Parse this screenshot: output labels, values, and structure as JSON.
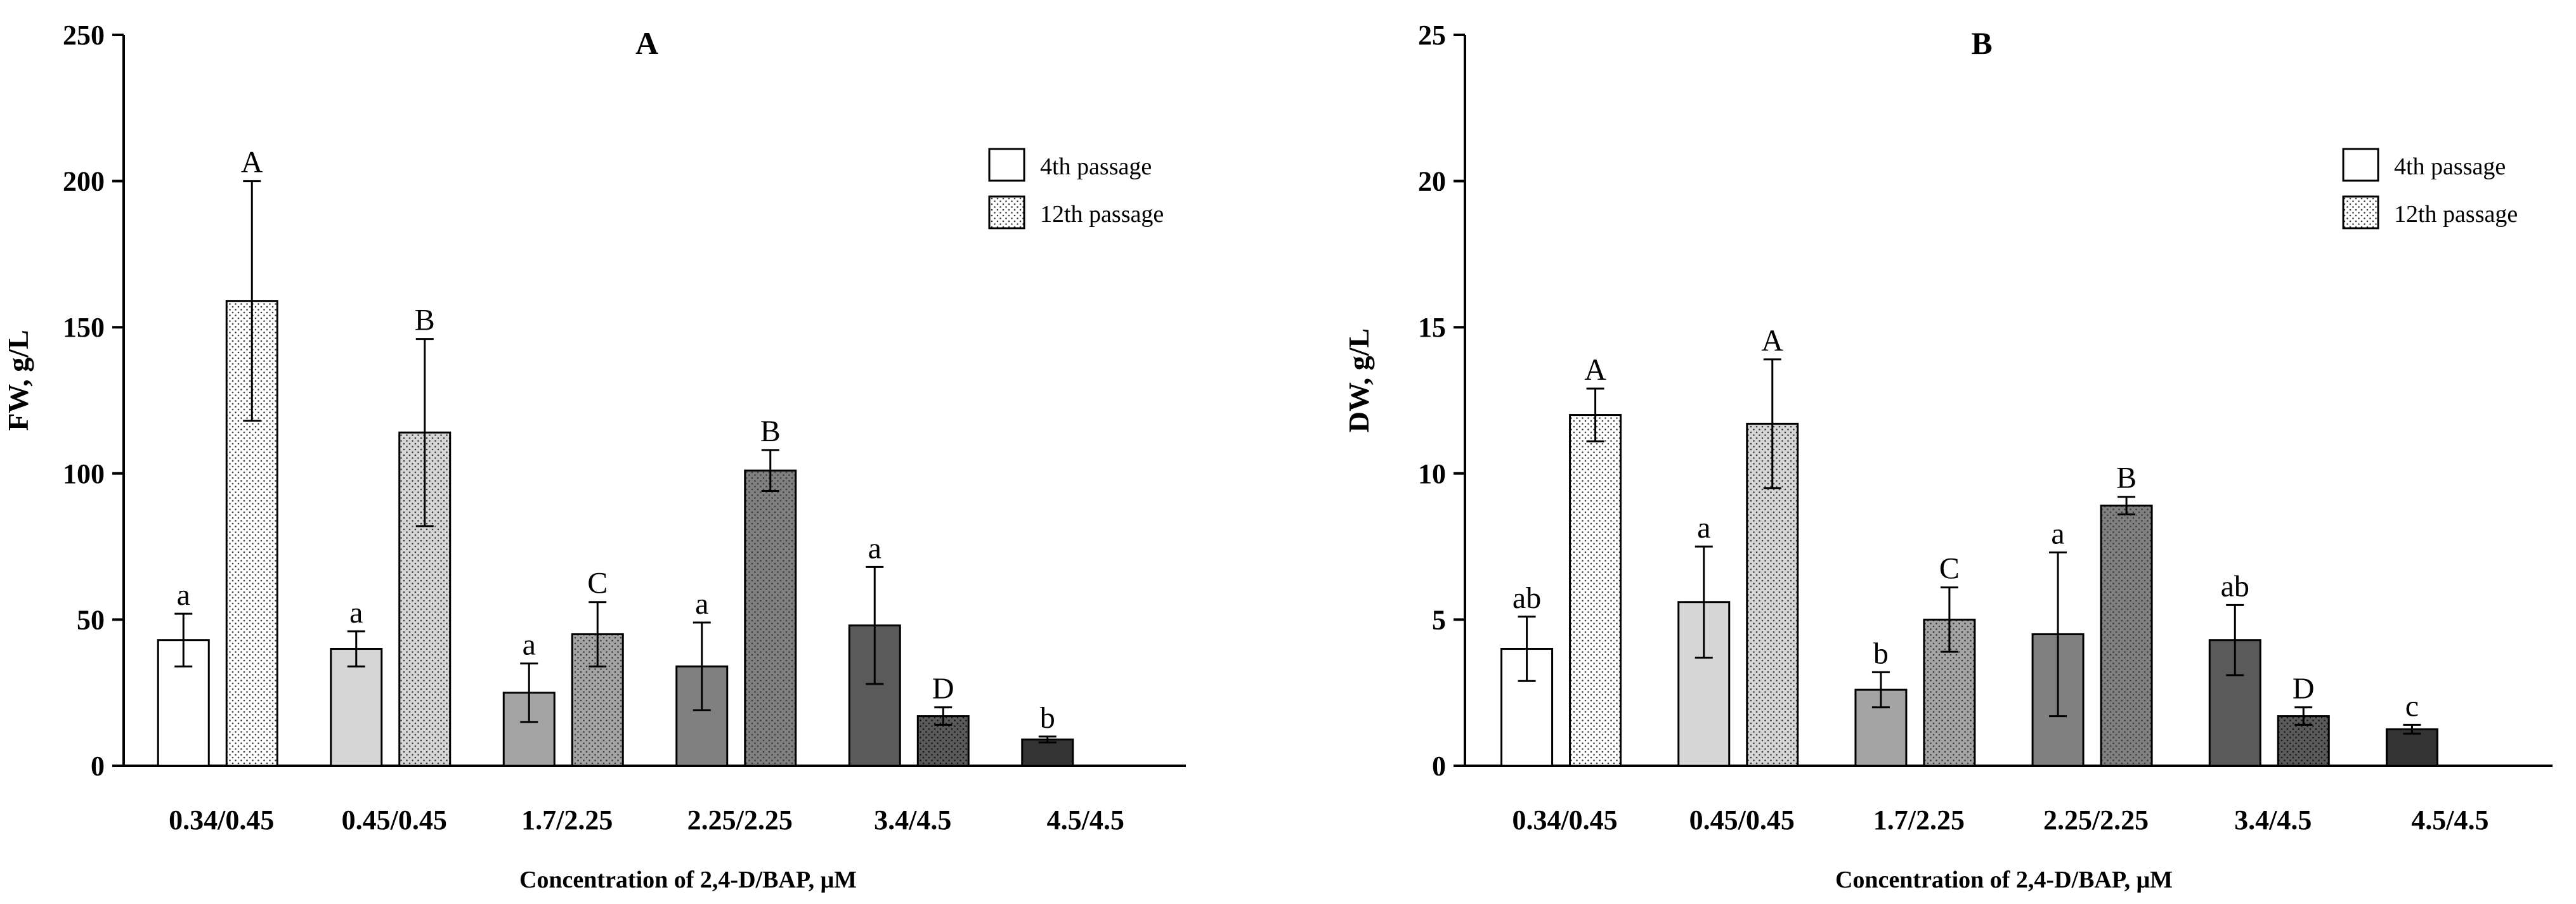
{
  "chart_data": [
    {
      "type": "bar",
      "panel": "A",
      "title": "A",
      "xlabel": "Concentration of 2,4-D/BAP, μM",
      "ylabel": "FW, g/L",
      "ylim": [
        0,
        250
      ],
      "yticks": [
        "0",
        "50",
        "100",
        "150",
        "200",
        "250"
      ],
      "categories": [
        "0.34/0.45",
        "0.45/0.45",
        "1.7/2.25",
        "2.25/2.25",
        "3.4/4.5",
        "4.5/4.5"
      ],
      "legend_position": "top-right",
      "series": [
        {
          "name": "4th passage",
          "pattern": "solid",
          "values": [
            43,
            40,
            25,
            34,
            48,
            9
          ],
          "errors": [
            9,
            6,
            10,
            15,
            20,
            1
          ],
          "letters": [
            "a",
            "a",
            "a",
            "a",
            "a",
            "b"
          ],
          "colors": [
            "#ffffff",
            "#d6d6d6",
            "#a4a4a4",
            "#808080",
            "#5a5a5a",
            "#333333"
          ]
        },
        {
          "name": "12th passage",
          "pattern": "dotted",
          "values": [
            159,
            114,
            45,
            101,
            17,
            null
          ],
          "errors": [
            41,
            32,
            11,
            7,
            3,
            null
          ],
          "letters": [
            "A",
            "B",
            "C",
            "B",
            "D",
            ""
          ],
          "colors": [
            "#ffffff",
            "#d6d6d6",
            "#a4a4a4",
            "#808080",
            "#5a5a5a",
            "#333333"
          ]
        }
      ]
    },
    {
      "type": "bar",
      "panel": "B",
      "title": "B",
      "xlabel": "Concentration of 2,4-D/BAP, μM",
      "ylabel": "DW, g/L",
      "ylim": [
        0,
        25
      ],
      "yticks": [
        "0",
        "5",
        "10",
        "15",
        "20",
        "25"
      ],
      "categories": [
        "0.34/0.45",
        "0.45/0.45",
        "1.7/2.25",
        "2.25/2.25",
        "3.4/4.5",
        "4.5/4.5"
      ],
      "legend_position": "top-right",
      "series": [
        {
          "name": "4th passage",
          "pattern": "solid",
          "values": [
            4.0,
            5.6,
            2.6,
            4.5,
            4.3,
            1.25
          ],
          "errors": [
            1.1,
            1.9,
            0.6,
            2.8,
            1.2,
            0.15
          ],
          "letters": [
            "ab",
            "a",
            "b",
            "a",
            "ab",
            "c"
          ],
          "colors": [
            "#ffffff",
            "#d6d6d6",
            "#a4a4a4",
            "#808080",
            "#5a5a5a",
            "#333333"
          ]
        },
        {
          "name": "12th passage",
          "pattern": "dotted",
          "values": [
            12.0,
            11.7,
            5.0,
            8.9,
            1.7,
            null
          ],
          "errors": [
            0.9,
            2.2,
            1.1,
            0.3,
            0.3,
            null
          ],
          "letters": [
            "A",
            "A",
            "C",
            "B",
            "D",
            ""
          ],
          "colors": [
            "#ffffff",
            "#d6d6d6",
            "#a4a4a4",
            "#808080",
            "#5a5a5a",
            "#333333"
          ]
        }
      ]
    }
  ]
}
